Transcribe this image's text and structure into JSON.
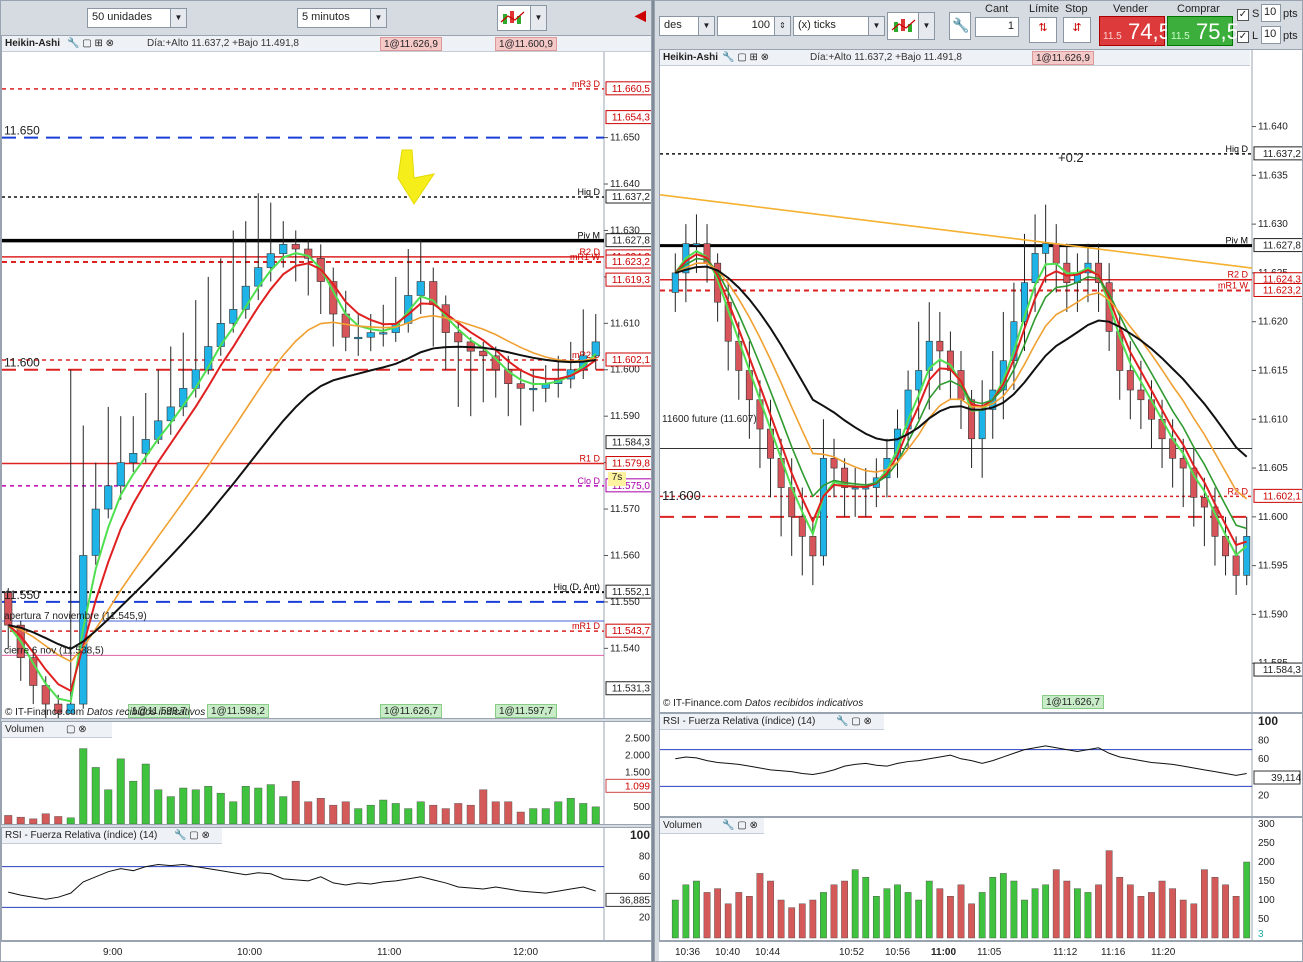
{
  "left": {
    "qty_select": "50 unidades",
    "interval_select": "5 minutos",
    "chart_title": "Heikin-Ashi",
    "day_info": "Día:+Alto 11.637,2 +Bajo 11.491,8",
    "orders_top": [
      "1@11.626,9",
      "1@11.600,9"
    ],
    "orders_bottom": [
      "1@11.598,2",
      "1@11.626,7",
      "1@11.597,7"
    ],
    "order_bottom_left": "1@11.598,7",
    "source": "© IT-Finance.com",
    "source_note": "Datos recibidos indicativos",
    "countdown": "7s",
    "left_levels": [
      {
        "text": "11.650",
        "price": 11650
      },
      {
        "text": "11.600",
        "price": 11600
      },
      {
        "text": "11.550",
        "price": 11550
      }
    ],
    "line_labels": [
      {
        "text": "mR3 D",
        "price": 11660.5
      },
      {
        "text": "Hig D",
        "price": 11637.2
      },
      {
        "text": "Piv M",
        "price": 11627.8
      },
      {
        "text": "R2 D",
        "price": 11624.3
      },
      {
        "text": "mR1 W",
        "price": 11623.2
      },
      {
        "text": "mR2 D",
        "price": 11602.1
      },
      {
        "text": "R1 D",
        "price": 11579.8
      },
      {
        "text": "Clo D",
        "price": 11575.0
      },
      {
        "text": "Hig (D, Ant)",
        "price": 11552.1
      },
      {
        "text": "mR1 D",
        "price": 11543.7
      }
    ],
    "annotations": [
      {
        "text": "apertura 7 noviembre (11.545,9)",
        "price": 11545.9
      },
      {
        "text": "cierre 6 nov (11.538,5)",
        "price": 11538.5
      }
    ],
    "price_boxes": [
      {
        "text": "11.660,5",
        "price": 11660.5,
        "color": "#cc0000"
      },
      {
        "text": "11.654,3",
        "price": 11654.3,
        "color": "#cc0000"
      },
      {
        "text": "11.637,2",
        "price": 11637.2,
        "color": "#222222"
      },
      {
        "text": "11.627,8",
        "price": 11627.8,
        "color": "#222222"
      },
      {
        "text": "11.624,3",
        "price": 11624.3,
        "color": "#cc0000"
      },
      {
        "text": "11.623,2",
        "price": 11623.2,
        "color": "#cc0000"
      },
      {
        "text": "11.619,3",
        "price": 11619.3,
        "color": "#cc0000"
      },
      {
        "text": "11.602,1",
        "price": 11602.1,
        "color": "#cc0000"
      },
      {
        "text": "11.584,3",
        "price": 11584.3,
        "color": "#222222"
      },
      {
        "text": "11.579,8",
        "price": 11579.8,
        "color": "#cc0000"
      },
      {
        "text": "11.575,0",
        "price": 11575.0,
        "color": "#aa00aa"
      },
      {
        "text": "11.552,1",
        "price": 11552.1,
        "color": "#222222"
      },
      {
        "text": "11.543,7",
        "price": 11543.7,
        "color": "#cc0000"
      },
      {
        "text": "11.531,3",
        "price": 11531.3,
        "color": "#222222"
      }
    ],
    "y_ticks": [
      11650,
      11640,
      11630,
      11620,
      11610,
      11600,
      11590,
      11580,
      11570,
      11560,
      11550,
      11540
    ],
    "time_labels": [
      "9:00",
      "10:00",
      "11:00",
      "12:00"
    ],
    "volume_title": "Volumen",
    "volume_ticks": [
      "2.500",
      "2.000",
      "1.500",
      "1.099",
      "500"
    ],
    "rsi_title": "RSI - Fuerza Relativa (índice) (14)",
    "rsi_ticks": [
      "100",
      "80",
      "60",
      "36,885",
      "20"
    ]
  },
  "right": {
    "qty_select": "des",
    "ticks_value": "100",
    "ticks_select": "(x) ticks",
    "cant_label": "Cant",
    "cant_value": "1",
    "limit_label": "Límite",
    "stop_label": "Stop",
    "sell_label": "Vender",
    "buy_label": "Comprar",
    "sell_small": "11.5",
    "sell_big": "74,5",
    "buy_small": "11.5",
    "buy_big": "75,5",
    "s_label": "S",
    "s_value": "10",
    "s_unit": "pts",
    "l_label": "L",
    "l_value": "10",
    "l_unit": "pts",
    "chart_title": "Heikin-Ashi",
    "day_info": "Día:+Alto 11.637,2 +Bajo 11.491,8",
    "order_top": "1@11.626,9",
    "order_bottom": "1@11.626,7",
    "plus_label": "+0.2",
    "future_label": "11600 future (11.607)",
    "level_label": "11.600",
    "source": "© IT-Finance.com",
    "source_note": "Datos recibidos indicativos",
    "line_labels": [
      {
        "text": "Hig D",
        "price": 11637.2
      },
      {
        "text": "Piv M",
        "price": 11627.8
      },
      {
        "text": "R2 D",
        "price": 11624.3
      },
      {
        "text": "mR1 W",
        "price": 11623.2
      },
      {
        "text": "R2 D",
        "price": 11602.1
      }
    ],
    "price_boxes": [
      {
        "text": "11.637,2",
        "price": 11637.2,
        "color": "#222222"
      },
      {
        "text": "11.627,8",
        "price": 11627.8,
        "color": "#222222"
      },
      {
        "text": "11.624,3",
        "price": 11624.3,
        "color": "#cc0000"
      },
      {
        "text": "11.623,2",
        "price": 11623.2,
        "color": "#cc0000"
      },
      {
        "text": "11.602,1",
        "price": 11602.1,
        "color": "#cc0000"
      },
      {
        "text": "11.584,3",
        "price": 11584.3,
        "color": "#222222"
      }
    ],
    "y_ticks": [
      11640,
      11635,
      11630,
      11625,
      11620,
      11615,
      11610,
      11605,
      11600,
      11595,
      11590,
      11585
    ],
    "time_labels": [
      "10:36",
      "10:40",
      "10:44",
      "10:52",
      "10:56",
      "11:00",
      "11:05",
      "11:12",
      "11:16",
      "11:20"
    ],
    "rsi_title": "RSI - Fuerza Relativa (índice) (14)",
    "rsi_ticks": [
      "100",
      "80",
      "60",
      "39,114",
      "20"
    ],
    "volume_title": "Volumen",
    "volume_ticks": [
      "300",
      "250",
      "200",
      "150",
      "100",
      "50",
      "3"
    ]
  },
  "chart_data": [
    {
      "type": "candlestick",
      "title": "Heikin-Ashi 5 minutos",
      "ylim": [
        11525,
        11668
      ],
      "x": [
        "08:30",
        "08:35",
        "08:40",
        "08:45",
        "08:50",
        "08:55",
        "09:00",
        "09:05",
        "09:10",
        "09:15",
        "09:20",
        "09:25",
        "09:30",
        "09:35",
        "09:40",
        "09:45",
        "09:50",
        "09:55",
        "10:00",
        "10:05",
        "10:10",
        "10:15",
        "10:20",
        "10:25",
        "10:30",
        "10:35",
        "10:40",
        "10:45",
        "10:50",
        "10:55",
        "11:00",
        "11:05",
        "11:10",
        "11:15",
        "11:20",
        "11:25",
        "11:30",
        "11:35",
        "11:40",
        "11:45",
        "11:50",
        "11:55",
        "12:00",
        "12:05",
        "12:10",
        "12:15",
        "12:20",
        "12:25"
      ],
      "open": [
        11552,
        11545,
        11538,
        11532,
        11528,
        11526,
        11528,
        11560,
        11570,
        11575,
        11580,
        11582,
        11585,
        11589,
        11592,
        11596,
        11600,
        11605,
        11610,
        11613,
        11618,
        11622,
        11625,
        11627,
        11626,
        11624,
        11619,
        11612,
        11607,
        11607,
        11608,
        11608,
        11610,
        11616,
        11619,
        11614,
        11608,
        11606,
        11604,
        11603,
        11600,
        11597,
        11596,
        11596,
        11597,
        11598,
        11600,
        11603
      ],
      "close": [
        11545,
        11538,
        11532,
        11528,
        11526,
        11528,
        11560,
        11570,
        11575,
        11580,
        11582,
        11585,
        11589,
        11592,
        11596,
        11600,
        11605,
        11610,
        11613,
        11618,
        11622,
        11625,
        11627,
        11626,
        11624,
        11619,
        11612,
        11607,
        11607,
        11608,
        11608,
        11610,
        11616,
        11619,
        11614,
        11608,
        11606,
        11604,
        11603,
        11600,
        11597,
        11596,
        11596,
        11597,
        11598,
        11600,
        11603,
        11606
      ],
      "high": [
        11553,
        11546,
        11540,
        11534,
        11530,
        11600,
        11588,
        11580,
        11592,
        11590,
        11590,
        11595,
        11600,
        11605,
        11608,
        11615,
        11620,
        11624,
        11630,
        11632,
        11638,
        11636,
        11632,
        11630,
        11628,
        11627,
        11622,
        11617,
        11612,
        11612,
        11614,
        11620,
        11626,
        11628,
        11622,
        11616,
        11610,
        11607,
        11606,
        11605,
        11603,
        11600,
        11600,
        11601,
        11603,
        11606,
        11613,
        11612
      ],
      "low": [
        11540,
        11533,
        11528,
        11524,
        11522,
        11526,
        11527,
        11558,
        11568,
        11572,
        11578,
        11580,
        11584,
        11586,
        11590,
        11594,
        11599,
        11603,
        11608,
        11611,
        11615,
        11619,
        11622,
        11619,
        11616,
        11612,
        11605,
        11604,
        11603,
        11604,
        11605,
        11606,
        11608,
        11612,
        11605,
        11600,
        11592,
        11590,
        11593,
        11594,
        11590,
        11588,
        11591,
        11593,
        11594,
        11596,
        11598,
        11600
      ],
      "volume": [
        250,
        200,
        150,
        300,
        220,
        180,
        2200,
        1650,
        1000,
        1900,
        1250,
        1750,
        1000,
        800,
        1050,
        1000,
        1100,
        900,
        650,
        1100,
        1050,
        1150,
        800,
        1250,
        650,
        750,
        550,
        650,
        450,
        550,
        700,
        600,
        450,
        650,
        550,
        450,
        600,
        550,
        1000,
        650,
        650,
        350,
        450,
        450,
        650,
        750,
        600,
        500
      ],
      "rsi": [
        45,
        42,
        40,
        38,
        40,
        44,
        55,
        60,
        65,
        68,
        66,
        70,
        72,
        71,
        72,
        70,
        68,
        66,
        64,
        62,
        64,
        63,
        58,
        57,
        56,
        60,
        54,
        52,
        54,
        53,
        55,
        56,
        58,
        60,
        57,
        54,
        50,
        49,
        48,
        50,
        48,
        46,
        45,
        44,
        46,
        48,
        50,
        46
      ]
    },
    {
      "type": "candlestick",
      "title": "Heikin-Ashi 100 ticks",
      "ylim": [
        11580,
        11646
      ],
      "x": [
        "10:36",
        "10:37",
        "10:38",
        "10:39",
        "10:40",
        "10:41",
        "10:42",
        "10:43",
        "10:44",
        "10:45",
        "10:46",
        "10:47",
        "10:48",
        "10:49",
        "10:50",
        "10:51",
        "10:52",
        "10:53",
        "10:54",
        "10:55",
        "10:56",
        "10:57",
        "10:58",
        "10:59",
        "11:00",
        "11:01",
        "11:02",
        "11:03",
        "11:04",
        "11:05",
        "11:06",
        "11:07",
        "11:08",
        "11:09",
        "11:10",
        "11:11",
        "11:12",
        "11:13",
        "11:14",
        "11:15",
        "11:16",
        "11:17",
        "11:18",
        "11:19",
        "11:20",
        "11:21",
        "11:22",
        "11:23",
        "11:24",
        "11:25",
        "11:26",
        "11:27",
        "11:28",
        "11:29",
        "11:30"
      ],
      "open": [
        11623,
        11625,
        11628,
        11628,
        11626,
        11622,
        11618,
        11615,
        11612,
        11609,
        11606,
        11603,
        11600,
        11598,
        11596,
        11606,
        11605,
        11603,
        11603,
        11603,
        11604,
        11606,
        11609,
        11613,
        11615,
        11618,
        11617,
        11615,
        11612,
        11608,
        11611,
        11613,
        11616,
        11620,
        11624,
        11627,
        11628,
        11626,
        11624,
        11625,
        11626,
        11624,
        11619,
        11615,
        11613,
        11612,
        11610,
        11608,
        11606,
        11605,
        11602,
        11601,
        11598,
        11596,
        11594
      ],
      "close": [
        11625,
        11628,
        11628,
        11626,
        11622,
        11618,
        11615,
        11612,
        11609,
        11606,
        11603,
        11600,
        11598,
        11596,
        11606,
        11605,
        11603,
        11603,
        11603,
        11604,
        11606,
        11609,
        11613,
        11615,
        11618,
        11617,
        11615,
        11612,
        11608,
        11611,
        11613,
        11616,
        11620,
        11624,
        11627,
        11628,
        11626,
        11624,
        11625,
        11626,
        11624,
        11619,
        11615,
        11613,
        11612,
        11610,
        11608,
        11606,
        11605,
        11602,
        11601,
        11598,
        11596,
        11594,
        11598
      ],
      "high": [
        11627,
        11630,
        11631,
        11630,
        11627,
        11624,
        11620,
        11618,
        11614,
        11612,
        11608,
        11606,
        11603,
        11600,
        11610,
        11608,
        11606,
        11605,
        11605,
        11606,
        11608,
        11611,
        11615,
        11620,
        11622,
        11621,
        11619,
        11617,
        11613,
        11614,
        11617,
        11621,
        11624,
        11629,
        11631,
        11632,
        11630,
        11628,
        11627,
        11628,
        11628,
        11626,
        11621,
        11618,
        11616,
        11614,
        11612,
        11610,
        11608,
        11607,
        11604,
        11603,
        11600,
        11598,
        11600
      ],
      "low": [
        11621,
        11622,
        11625,
        11624,
        11620,
        11615,
        11612,
        11608,
        11605,
        11602,
        11598,
        11596,
        11594,
        11593,
        11595,
        11602,
        11600,
        11600,
        11600,
        11601,
        11602,
        11604,
        11607,
        11610,
        11611,
        11613,
        11612,
        11609,
        11605,
        11604,
        11608,
        11610,
        11613,
        11617,
        11621,
        11624,
        11623,
        11621,
        11621,
        11622,
        11621,
        11617,
        11612,
        11610,
        11609,
        11607,
        11605,
        11603,
        11601,
        11599,
        11597,
        11595,
        11594,
        11592,
        11593
      ],
      "volume": [
        100,
        140,
        150,
        120,
        130,
        90,
        120,
        110,
        170,
        150,
        100,
        80,
        90,
        100,
        120,
        140,
        150,
        180,
        160,
        110,
        130,
        140,
        120,
        100,
        150,
        130,
        110,
        140,
        90,
        120,
        160,
        170,
        150,
        100,
        130,
        140,
        180,
        150,
        130,
        120,
        140,
        230,
        160,
        140,
        110,
        120,
        150,
        130,
        100,
        90,
        180,
        160,
        140,
        110,
        200
      ],
      "rsi": [
        60,
        62,
        61,
        58,
        56,
        55,
        54,
        52,
        50,
        48,
        47,
        46,
        44,
        43,
        45,
        48,
        52,
        54,
        55,
        53,
        52,
        55,
        57,
        58,
        60,
        62,
        64,
        60,
        58,
        55,
        58,
        62,
        66,
        70,
        72,
        74,
        72,
        70,
        68,
        70,
        72,
        66,
        62,
        60,
        58,
        56,
        55,
        54,
        52,
        50,
        48,
        46,
        44,
        42,
        44
      ]
    }
  ]
}
